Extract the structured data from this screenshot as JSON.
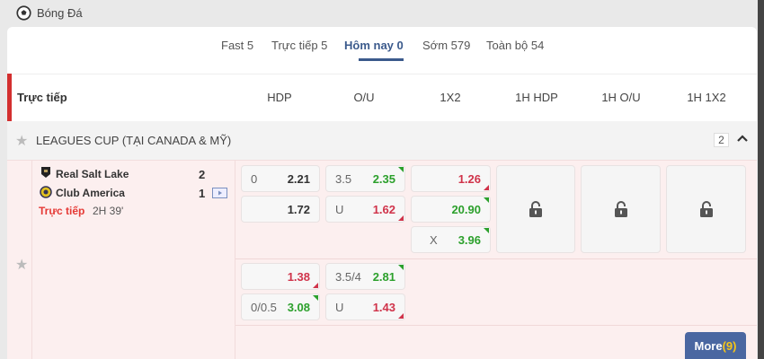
{
  "sport": {
    "label": "Bóng Đá",
    "icon": "soccer-ball-icon"
  },
  "tabs": [
    {
      "label": "Fast 5"
    },
    {
      "label": "Trực tiếp 5"
    },
    {
      "label": "Hôm nay 0",
      "active": true
    },
    {
      "label": "Sớm 579"
    },
    {
      "label": "Toàn bộ 54"
    }
  ],
  "header": {
    "section": "Trực tiếp",
    "columns": [
      "HDP",
      "O/U",
      "1X2",
      "1H HDP",
      "1H O/U",
      "1H 1X2"
    ]
  },
  "league": {
    "name": "LEAGUES CUP (TẠI CANADA & MỸ)",
    "count": "2"
  },
  "match": {
    "home": {
      "name": "Real Salt Lake",
      "score": "2"
    },
    "away": {
      "name": "Club America",
      "score": "1"
    },
    "status": "Trực tiếp",
    "time": "2H 39'",
    "main": {
      "hdp": [
        {
          "line": "0",
          "odds": "2.21"
        },
        {
          "line": "",
          "odds": "1.72"
        }
      ],
      "ou": [
        {
          "line": "3.5",
          "odds": "2.35"
        },
        {
          "line": "U",
          "odds": "1.62"
        }
      ],
      "x12": [
        {
          "line": "",
          "odds": "1.26"
        },
        {
          "line": "",
          "odds": "20.90"
        },
        {
          "line": "X",
          "odds": "3.96"
        }
      ]
    },
    "alt": {
      "hdp": [
        {
          "line": "",
          "odds": "1.38"
        },
        {
          "line": "0/0.5",
          "odds": "3.08"
        }
      ],
      "ou": [
        {
          "line": "3.5/4",
          "odds": "2.81"
        },
        {
          "line": "U",
          "odds": "1.43"
        }
      ]
    },
    "more_label": "More",
    "more_count": "(9)"
  },
  "colors": {
    "accent": "#3b5a8c",
    "live": "#d32f2f",
    "odds_up": "#2ca02c",
    "odds_down": "#d0334a",
    "more_count": "#f5c518"
  }
}
